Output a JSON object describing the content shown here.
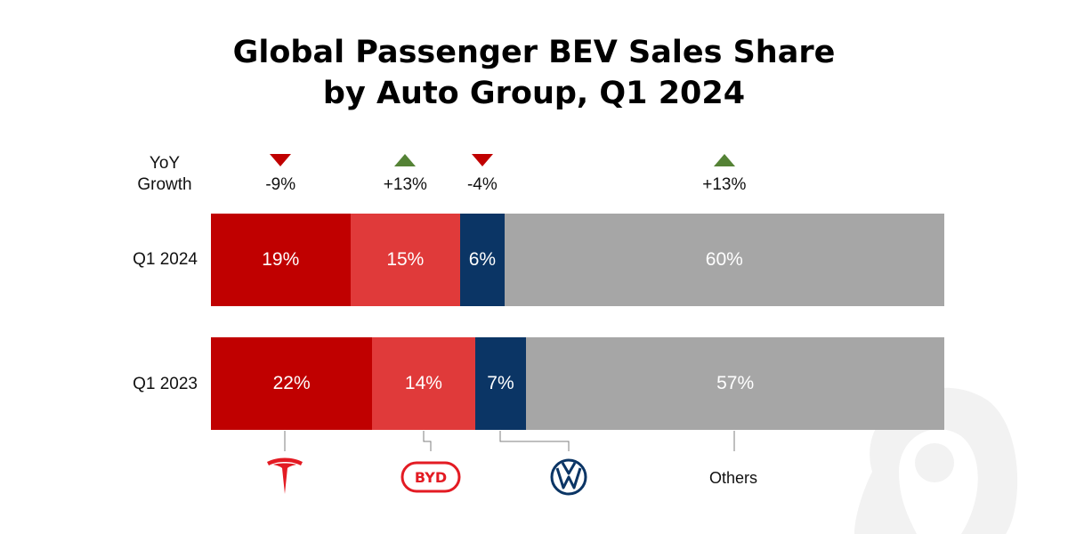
{
  "title_line1": "Global Passenger BEV Sales Share",
  "title_line2": "by Auto Group, Q1 2024",
  "yoy_label_line1": "YoY",
  "yoy_label_line2": "Growth",
  "others_label": "Others",
  "colors": {
    "tesla": "#c00000",
    "byd": "#e03a3a",
    "volkswagen": "#0b3565",
    "others": "#a6a6a6",
    "up": "#548235",
    "down": "#c00000"
  },
  "chart_data": {
    "type": "bar",
    "orientation": "horizontal-stacked-100",
    "title": "Global Passenger BEV Sales Share by Auto Group, Q1 2024",
    "categories": [
      "Q1 2024",
      "Q1 2023"
    ],
    "series": [
      {
        "name": "Tesla",
        "icon": "tesla-logo-icon",
        "values": [
          19,
          22
        ],
        "labels": [
          "19%",
          "22%"
        ],
        "yoy": "-9%",
        "yoy_direction": "down"
      },
      {
        "name": "BYD",
        "icon": "byd-logo-icon",
        "values": [
          15,
          14
        ],
        "labels": [
          "15%",
          "14%"
        ],
        "yoy": "+13%",
        "yoy_direction": "up"
      },
      {
        "name": "Volkswagen",
        "icon": "volkswagen-logo-icon",
        "values": [
          6,
          7
        ],
        "labels": [
          "6%",
          "7%"
        ],
        "yoy": "-4%",
        "yoy_direction": "down"
      },
      {
        "name": "Others",
        "values": [
          60,
          57
        ],
        "labels": [
          "60%",
          "57%"
        ],
        "yoy": "+13%",
        "yoy_direction": "up"
      }
    ]
  }
}
